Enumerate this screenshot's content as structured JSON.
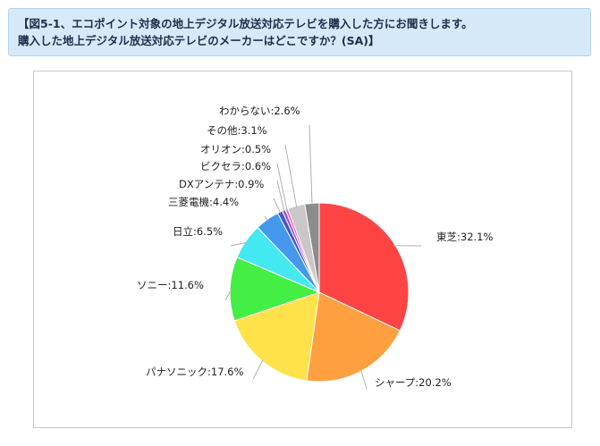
{
  "title": {
    "line1": "【図5-1、エコポイント対象の地上デジタル放送対応テレビを購入した方にお聞きします。",
    "line2": "購入した地上デジタル放送対応テレビのメーカーはどこですか？(SA)】"
  },
  "chart_data": {
    "type": "pie",
    "title": "【図5-1、エコポイント対象の地上デジタル放送対応テレビを購入した方にお聞きします。購入した地上デジタル放送対応テレビのメーカーはどこですか？(SA)】",
    "unit": "%",
    "slices": [
      {
        "label": "東芝",
        "value": 32.1,
        "color": "#ff4444"
      },
      {
        "label": "シャープ",
        "value": 20.2,
        "color": "#ffa040"
      },
      {
        "label": "パナソニック",
        "value": 17.6,
        "color": "#ffe24a"
      },
      {
        "label": "ソニー",
        "value": 11.6,
        "color": "#44ee44"
      },
      {
        "label": "日立",
        "value": 6.5,
        "color": "#44e8f0"
      },
      {
        "label": "三菱電機",
        "value": 4.4,
        "color": "#4499ee"
      },
      {
        "label": "DXアンテナ",
        "value": 0.9,
        "color": "#4455cc"
      },
      {
        "label": "ビクセラ",
        "value": 0.6,
        "color": "#9955cc"
      },
      {
        "label": "オリオン",
        "value": 0.5,
        "color": "#ff66cc"
      },
      {
        "label": "その他",
        "value": 3.1,
        "color": "#c8c8c8"
      },
      {
        "label": "わからない",
        "value": 2.6,
        "color": "#8c8c8c"
      }
    ],
    "start": "12 o'clock",
    "direction": "clockwise",
    "legend": "none"
  }
}
